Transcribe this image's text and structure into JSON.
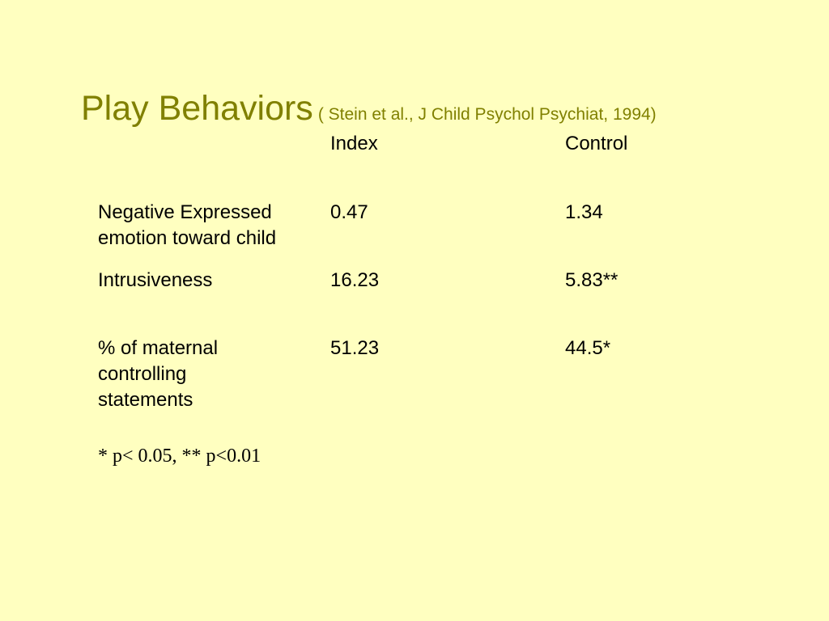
{
  "slide": {
    "title": "Play Behaviors",
    "citation": "( Stein et al., J Child Psychol Psychiat, 1994)",
    "title_color": "#808000",
    "background_color": "#ffffc0"
  },
  "table": {
    "headers": [
      "",
      "Index",
      "Control"
    ],
    "rows": [
      {
        "label": "Negative Expressed emotion toward child",
        "index": "0.47",
        "control": "1.34"
      },
      {
        "label": "Intrusiveness",
        "index": "16.23",
        "control": "5.83**"
      },
      {
        "label": "% of maternal controlling statements",
        "index": "51.23",
        "control": "44.5*"
      }
    ]
  },
  "footnote": "* p< 0.05, ** p<0.01"
}
